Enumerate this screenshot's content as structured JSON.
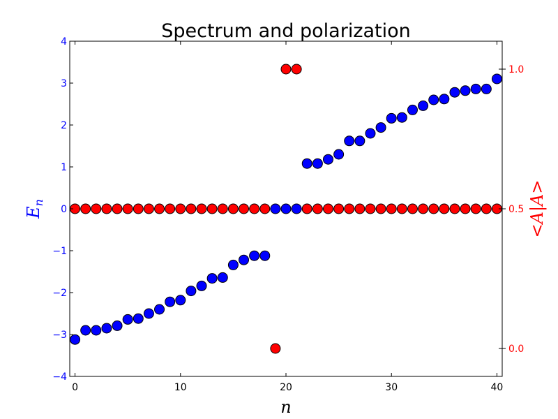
{
  "chart_data": {
    "type": "scatter",
    "title": "Spectrum and polarization",
    "xlabel": "n",
    "ylabel_left": "E",
    "ylabel_left_subscript": "n",
    "ylabel_right": "<A|A>",
    "xlim": [
      -0.5,
      40.5
    ],
    "ylim_left": [
      -4,
      4
    ],
    "ylim_right": [
      -0.1,
      1.1
    ],
    "xticks": [
      0,
      10,
      20,
      30,
      40
    ],
    "yticks_left": [
      -4,
      -3,
      -2,
      -1,
      0,
      1,
      2,
      3,
      4
    ],
    "yticks_right": [
      0.0,
      0.5,
      1.0
    ],
    "xtick_labels": [
      "0",
      "10",
      "20",
      "30",
      "40"
    ],
    "ytick_labels_left": [
      "−4",
      "−3",
      "−2",
      "−1",
      "0",
      "1",
      "2",
      "3",
      "4"
    ],
    "ytick_labels_right": [
      "0.0",
      "0.5",
      "1.0"
    ],
    "grid": false,
    "series": [
      {
        "axis": "left",
        "color": "#0000ff",
        "x": [
          0,
          1,
          2,
          3,
          4,
          5,
          6,
          7,
          8,
          9,
          10,
          11,
          12,
          13,
          14,
          15,
          16,
          17,
          18,
          19,
          20,
          21,
          22,
          23,
          24,
          25,
          26,
          27,
          28,
          29,
          30,
          31,
          32,
          33,
          34,
          35,
          36,
          37,
          38,
          39,
          40
        ],
        "y": [
          -3.12,
          -2.9,
          -2.9,
          -2.85,
          -2.79,
          -2.64,
          -2.62,
          -2.5,
          -2.4,
          -2.22,
          -2.18,
          -1.96,
          -1.84,
          -1.66,
          -1.64,
          -1.34,
          -1.22,
          -1.12,
          -1.12,
          0,
          0,
          0,
          1.08,
          1.08,
          1.18,
          1.3,
          1.62,
          1.62,
          1.8,
          1.94,
          2.16,
          2.18,
          2.36,
          2.46,
          2.6,
          2.62,
          2.78,
          2.82,
          2.86,
          2.86,
          3.1
        ]
      },
      {
        "axis": "right",
        "color": "#ff0000",
        "x": [
          0,
          1,
          2,
          3,
          4,
          5,
          6,
          7,
          8,
          9,
          10,
          11,
          12,
          13,
          14,
          15,
          16,
          17,
          18,
          19,
          20,
          21,
          22,
          23,
          24,
          25,
          26,
          27,
          28,
          29,
          30,
          31,
          32,
          33,
          34,
          35,
          36,
          37,
          38,
          39,
          40
        ],
        "y": [
          0.5,
          0.5,
          0.5,
          0.5,
          0.5,
          0.5,
          0.5,
          0.5,
          0.5,
          0.5,
          0.5,
          0.5,
          0.5,
          0.5,
          0.5,
          0.5,
          0.5,
          0.5,
          0.5,
          0.0,
          1.0,
          1.0,
          0.5,
          0.5,
          0.5,
          0.5,
          0.5,
          0.5,
          0.5,
          0.5,
          0.5,
          0.5,
          0.5,
          0.5,
          0.5,
          0.5,
          0.5,
          0.5,
          0.5,
          0.5,
          0.5
        ]
      }
    ],
    "colors": {
      "left_axis": "#0000ff",
      "right_axis": "#ff0000"
    }
  }
}
